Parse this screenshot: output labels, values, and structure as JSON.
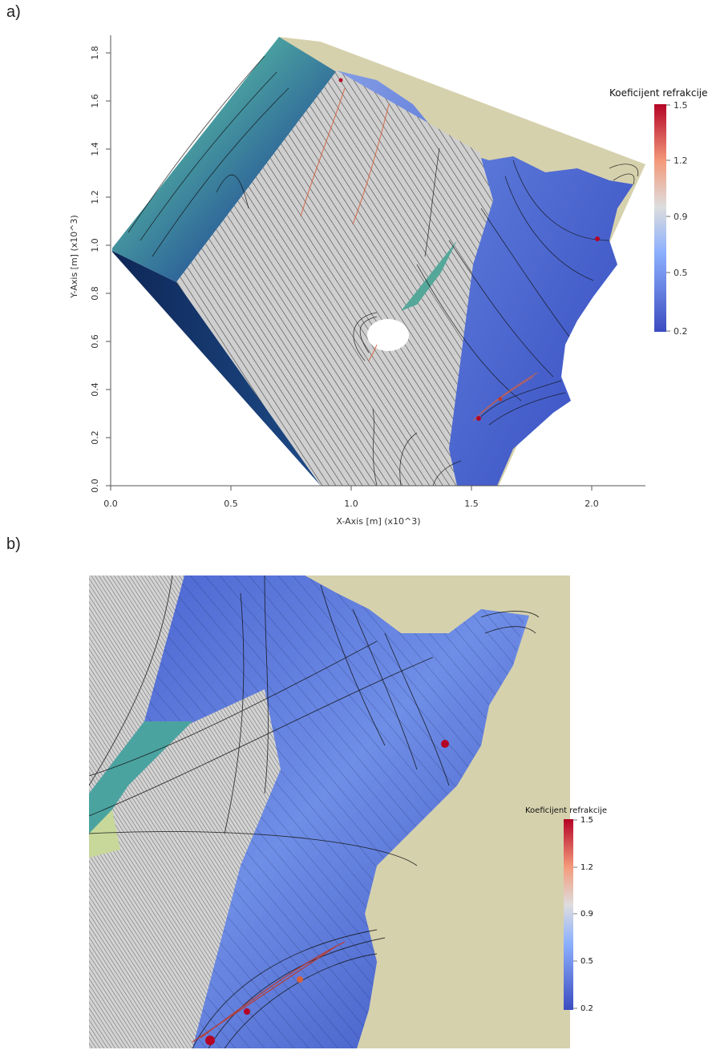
{
  "panel_a": {
    "label": "a)",
    "xlabel": "X-Axis [m] (x10^3)",
    "ylabel": "Y-Axis [m] (x10^3)",
    "x_ticks": [
      "0.0",
      "0.5",
      "1.0",
      "1.5",
      "2.0"
    ],
    "y_ticks": [
      "0.0",
      "0.2",
      "0.4",
      "0.6",
      "0.8",
      "1.0",
      "1.2",
      "1.4",
      "1.6",
      "1.8"
    ],
    "legend": {
      "title": "Koeficijent refrakcije",
      "ticks": [
        "1.5",
        "1.2",
        "0.9",
        "0.5",
        "0.2"
      ]
    }
  },
  "panel_b": {
    "label": "b)",
    "legend": {
      "title": "Koeficijent refrakcije",
      "ticks": [
        "1.5",
        "1.2",
        "0.9",
        "0.5",
        "0.2"
      ]
    }
  },
  "colors": {
    "land": "#d6d1ad",
    "water_low": "#3b4cc0",
    "water_high": "#b40426",
    "neutral": "#dddddd",
    "deep": "#0b2250",
    "shallow": "#c8d8a0"
  }
}
